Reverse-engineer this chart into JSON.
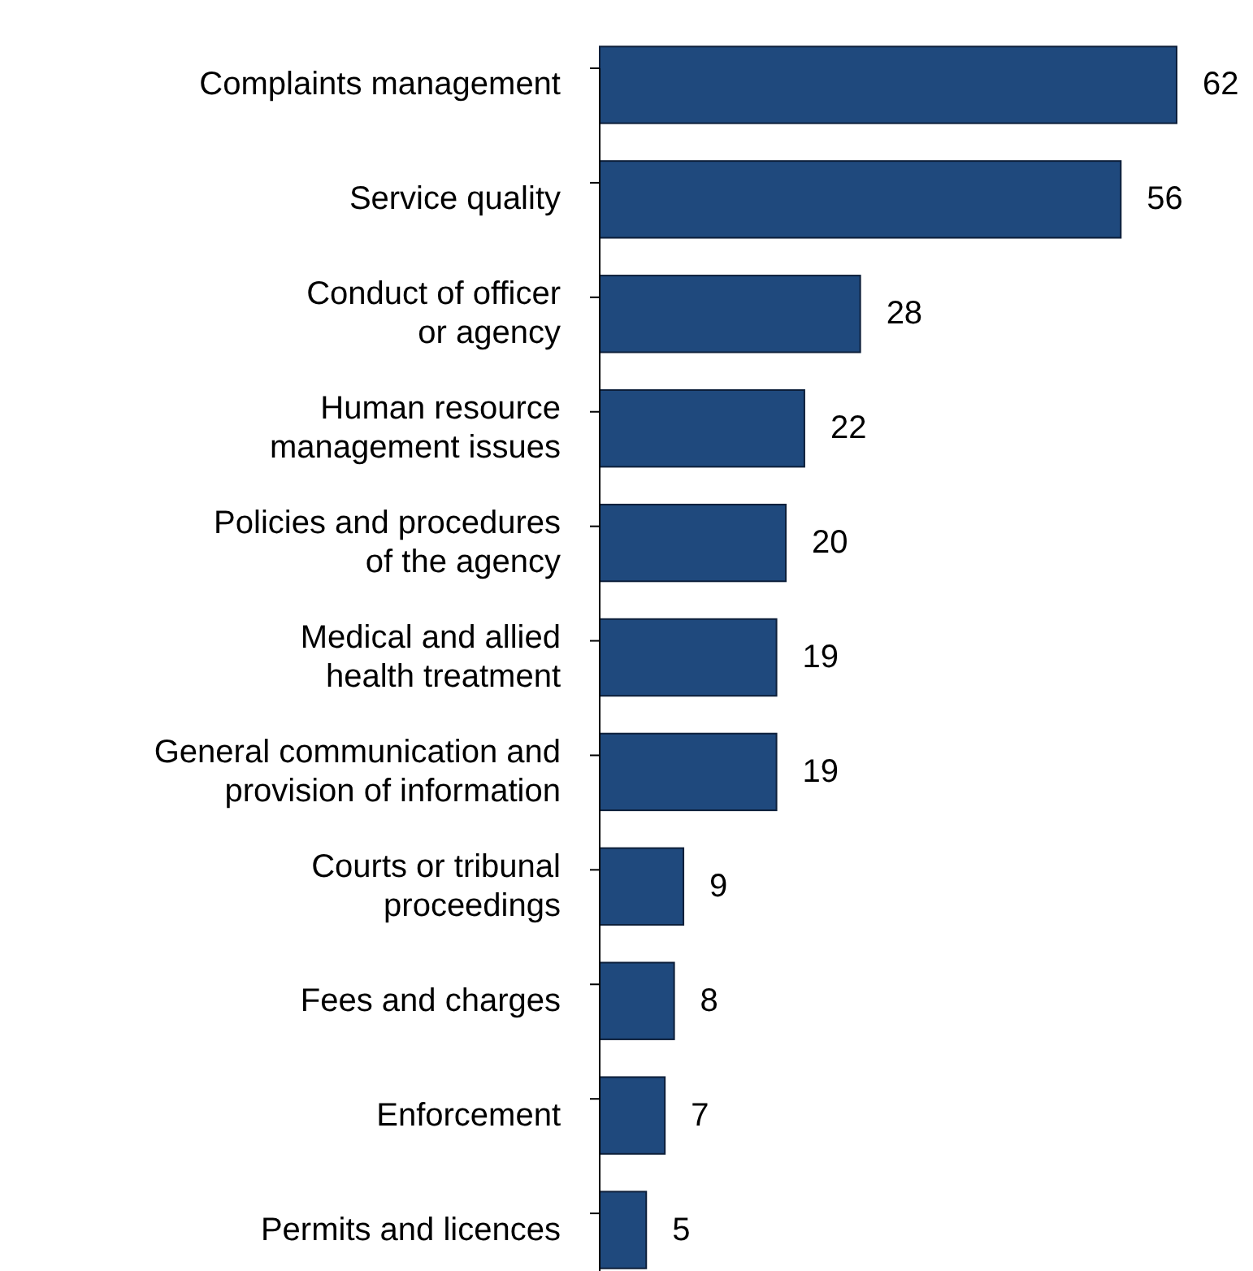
{
  "chart_data": {
    "type": "bar",
    "orientation": "horizontal",
    "data_labels": true,
    "color": "#1f497d",
    "categories": [
      "Complaints management",
      "Service quality",
      "Conduct of officer\nor agency",
      "Human resource\nmanagement issues",
      "Policies and procedures\nof the agency",
      "Medical and allied\nhealth treatment",
      "General communication and\nprovision of information",
      "Courts or tribunal\nproceedings",
      "Fees and charges",
      "Enforcement",
      "Permits and licences"
    ],
    "values": [
      62,
      56,
      28,
      22,
      20,
      19,
      19,
      9,
      8,
      7,
      5
    ]
  }
}
